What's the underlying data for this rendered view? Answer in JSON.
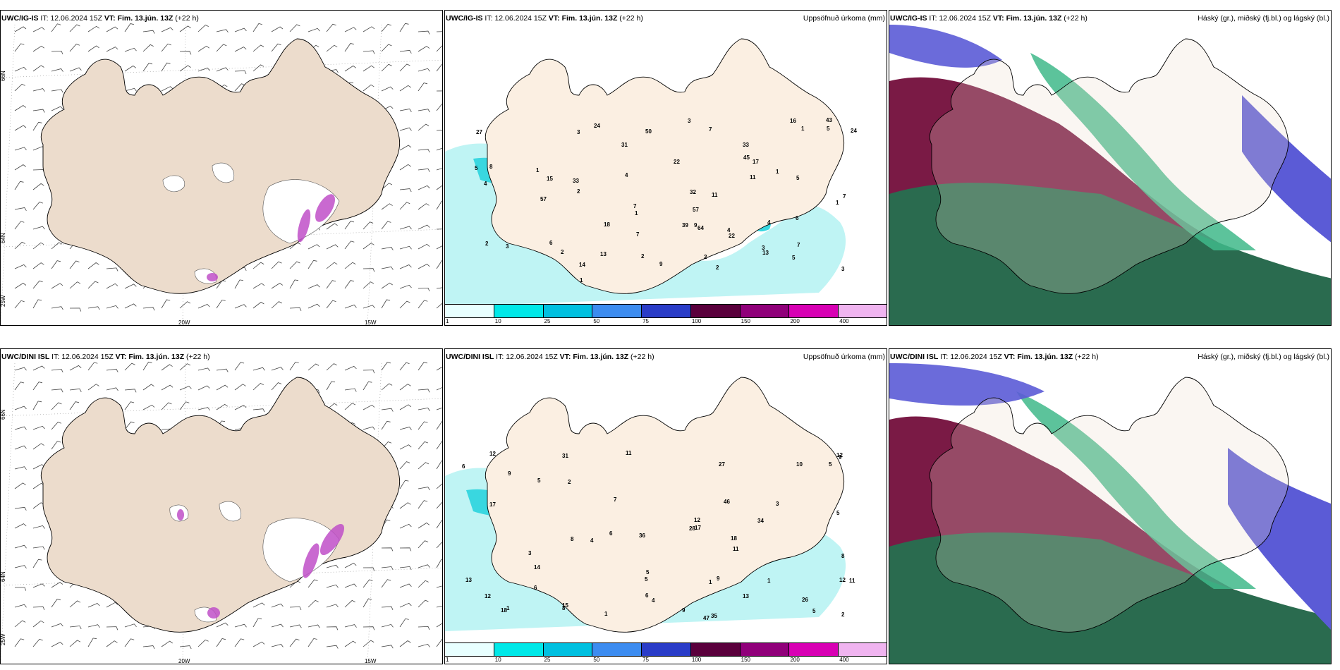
{
  "rows": [
    {
      "model": "UWC/IG-IS",
      "it_label": "IT:",
      "it_value": "12.06.2024 15Z",
      "vt_label": "VT:",
      "vt_value": "Fim. 13.jún. 13Z",
      "lead": "(+22 h)",
      "wind_labels": {
        "lat_a": "66N",
        "lat_b": "64N",
        "lon_a": "20W",
        "lon_b": "15W",
        "lon_c": "25W"
      },
      "precip_values": [
        "2",
        "3",
        "6",
        "1",
        "1",
        "2",
        "1",
        "2",
        "1",
        "2",
        "3",
        "5",
        "7",
        "9",
        "11",
        "16",
        "4",
        "1",
        "4",
        "5",
        "3",
        "64",
        "14",
        "13",
        "11",
        "17",
        "57",
        "15",
        "9",
        "31",
        "22",
        "43",
        "33",
        "13",
        "24",
        "2",
        "3",
        "8",
        "7",
        "4",
        "50",
        "32",
        "24",
        "7",
        "7",
        "6",
        "39",
        "7",
        "57",
        "5",
        "18",
        "22",
        "33",
        "45",
        "27",
        "3",
        "5",
        "4",
        "1",
        "2"
      ]
    },
    {
      "model": "UWC/DINI ISL",
      "it_label": "IT:",
      "it_value": "12.06.2024 15Z",
      "vt_label": "VT:",
      "vt_value": "Fim. 13.jún. 13Z",
      "lead": "(+22 h)",
      "wind_labels": {
        "lat_a": "66N",
        "lat_b": "64N",
        "lon_a": "20W",
        "lon_b": "15W",
        "lon_c": "25W"
      },
      "precip_values": [
        "1",
        "47",
        "15",
        "13",
        "31",
        "9",
        "8",
        "5",
        "11",
        "7",
        "10",
        "4",
        "6",
        "5",
        "27",
        "28",
        "17",
        "8",
        "4",
        "6",
        "1",
        "9",
        "12",
        "18",
        "3",
        "3",
        "13",
        "14",
        "12",
        "11",
        "36",
        "35",
        "5",
        "5",
        "6",
        "18",
        "12",
        "12",
        "46",
        "26",
        "17",
        "34",
        "11",
        "1",
        "2",
        "9",
        "8",
        "9",
        "5",
        "6",
        "12",
        "5",
        "2",
        "1"
      ]
    }
  ],
  "precip_title": "Uppsöfnuð úrkoma (mm)",
  "cloud_title": "Háský (gr.), miðský (fj.bl.) og lágský (bl.)",
  "colorbar": {
    "ticks": [
      "1",
      "10",
      "25",
      "50",
      "75",
      "100",
      "150",
      "200",
      "400"
    ],
    "colors": [
      "#e8ffff",
      "#00e8e8",
      "#00c0e0",
      "#3c8cf0",
      "#2a3cc8",
      "#5a003c",
      "#90007a",
      "#d800b4",
      "#f0b4f0"
    ]
  },
  "colors": {
    "land": "#ecdccc",
    "land_light": "#fbefe2",
    "coast": "#000000"
  }
}
